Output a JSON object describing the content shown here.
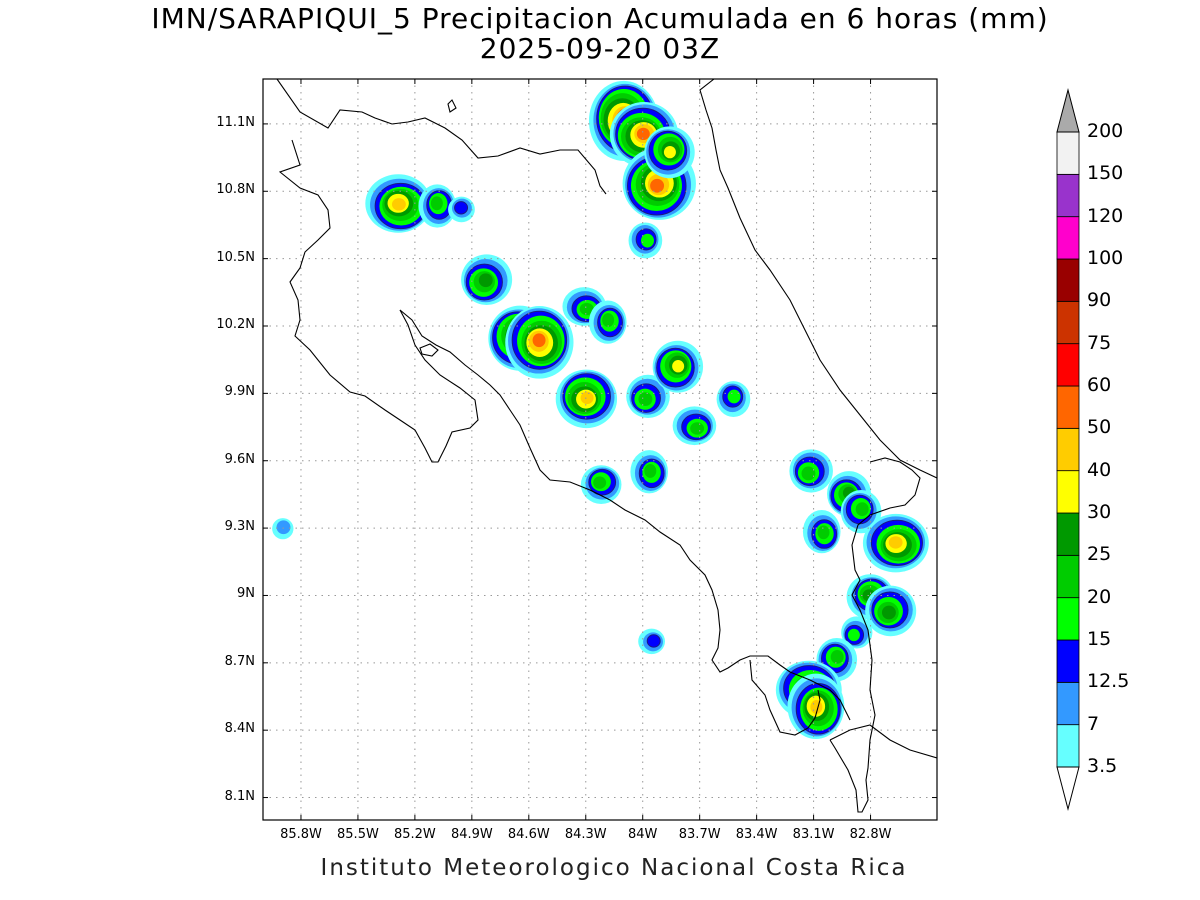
{
  "title": {
    "line1": "IMN/SARAPIQUI_5 Precipitacion Acumulada en 6 horas (mm)",
    "line2": "2025-09-20 03Z"
  },
  "footer": "Instituto Meteorologico Nacional Costa Rica",
  "map": {
    "lon_range": [
      -86.0,
      -82.45
    ],
    "lat_range": [
      8.0,
      11.3
    ],
    "lat_ticks": [
      "11.1N",
      "10.8N",
      "10.5N",
      "10.2N",
      "9.9N",
      "9.6N",
      "9.3N",
      "9N",
      "8.7N",
      "8.4N",
      "8.1N"
    ],
    "lon_ticks": [
      "85.8W",
      "85.5W",
      "85.2W",
      "84.9W",
      "84.6W",
      "84.3W",
      "84W",
      "83.7W",
      "83.4W",
      "83.1W",
      "82.8W"
    ],
    "grid": "dotted"
  },
  "colorbar": {
    "units": "mm",
    "levels": [
      "3.5",
      "7",
      "12.5",
      "15",
      "20",
      "25",
      "30",
      "40",
      "50",
      "60",
      "75",
      "90",
      "100",
      "120",
      "150",
      "200"
    ],
    "colors": [
      "#66ffff",
      "#3399ff",
      "#0000ff",
      "#00ff00",
      "#00cc00",
      "#009900",
      "#ffff00",
      "#ffcc00",
      "#ff6600",
      "#ff0000",
      "#cc3300",
      "#990000",
      "#ff00cc",
      "#9933cc",
      "#f2f2f2"
    ],
    "over_color": "#aaaaaa",
    "under_color": "#ffffff"
  },
  "precip_cells": [
    {
      "lon": -84.1,
      "lat": 11.12,
      "peak": 60
    },
    {
      "lon": -84.0,
      "lat": 11.05,
      "peak": 50
    },
    {
      "lon": -83.92,
      "lat": 10.83,
      "peak": 50
    },
    {
      "lon": -83.86,
      "lat": 10.98,
      "peak": 30
    },
    {
      "lon": -83.98,
      "lat": 10.58,
      "peak": 15
    },
    {
      "lon": -85.28,
      "lat": 10.74,
      "peak": 40
    },
    {
      "lon": -85.08,
      "lat": 10.74,
      "peak": 20
    },
    {
      "lon": -84.96,
      "lat": 10.72,
      "peak": 12.5
    },
    {
      "lon": -84.83,
      "lat": 10.4,
      "peak": 25
    },
    {
      "lon": -84.65,
      "lat": 10.15,
      "peak": 50
    },
    {
      "lon": -84.54,
      "lat": 10.13,
      "peak": 50
    },
    {
      "lon": -84.3,
      "lat": 10.28,
      "peak": 20
    },
    {
      "lon": -84.18,
      "lat": 10.22,
      "peak": 20
    },
    {
      "lon": -84.3,
      "lat": 9.88,
      "peak": 40
    },
    {
      "lon": -83.98,
      "lat": 9.88,
      "peak": 20
    },
    {
      "lon": -83.82,
      "lat": 10.02,
      "peak": 30
    },
    {
      "lon": -83.52,
      "lat": 9.88,
      "peak": 15
    },
    {
      "lon": -83.72,
      "lat": 9.75,
      "peak": 20
    },
    {
      "lon": -83.96,
      "lat": 9.55,
      "peak": 20
    },
    {
      "lon": -84.22,
      "lat": 9.5,
      "peak": 20
    },
    {
      "lon": -83.12,
      "lat": 9.55,
      "peak": 20
    },
    {
      "lon": -82.92,
      "lat": 9.45,
      "peak": 25
    },
    {
      "lon": -82.85,
      "lat": 9.38,
      "peak": 20
    },
    {
      "lon": -82.66,
      "lat": 9.23,
      "peak": 40
    },
    {
      "lon": -83.05,
      "lat": 9.28,
      "peak": 20
    },
    {
      "lon": -82.8,
      "lat": 9.0,
      "peak": 25
    },
    {
      "lon": -82.7,
      "lat": 8.93,
      "peak": 25
    },
    {
      "lon": -82.88,
      "lat": 8.83,
      "peak": 15
    },
    {
      "lon": -82.98,
      "lat": 8.72,
      "peak": 20
    },
    {
      "lon": -83.12,
      "lat": 8.58,
      "peak": 40
    },
    {
      "lon": -83.08,
      "lat": 8.5,
      "peak": 40
    },
    {
      "lon": -83.95,
      "lat": 8.8,
      "peak": 12.5
    },
    {
      "lon": -85.9,
      "lat": 9.3,
      "peak": 7
    }
  ]
}
